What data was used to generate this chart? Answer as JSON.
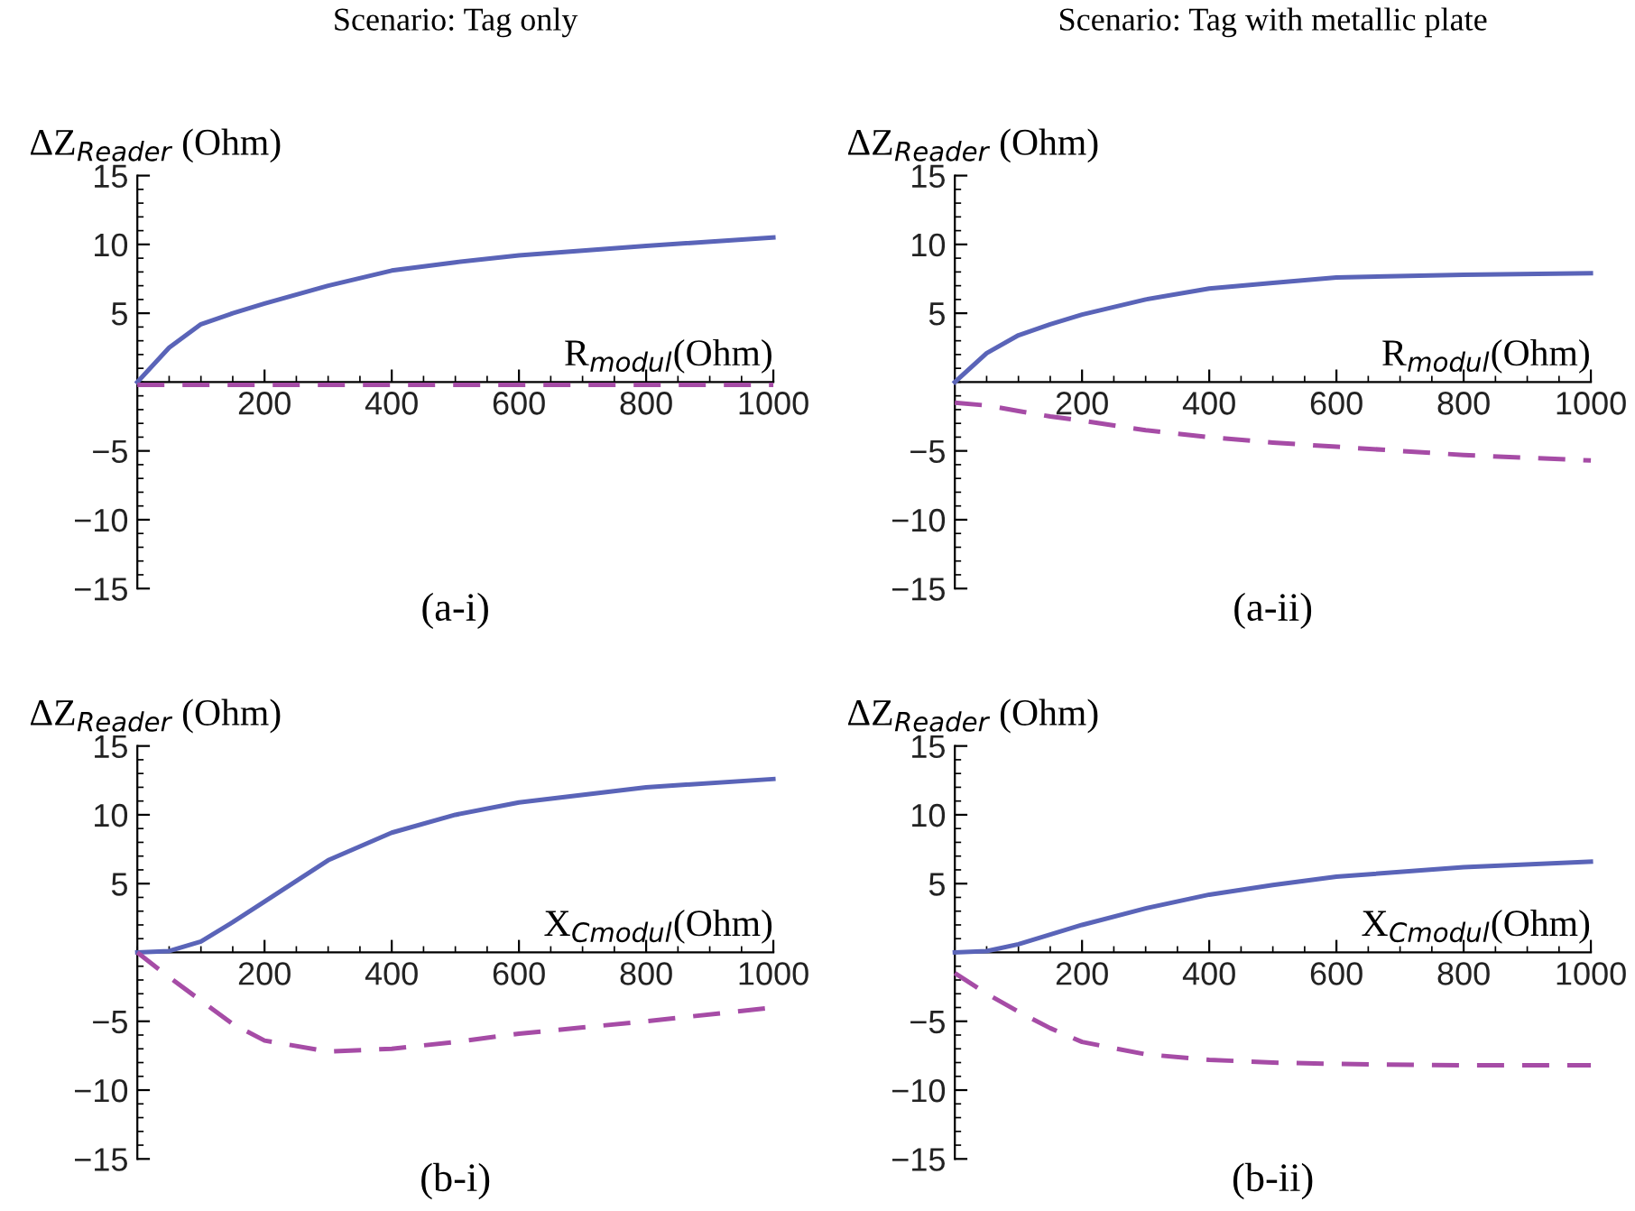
{
  "chart_data": [
    {
      "type": "line",
      "title": "Scenario: Tag only",
      "ylabel": "ΔZ$_{Reader}$ (Ohm)",
      "xlabel": "R$_{modul}$(Ohm)",
      "annotations": [
        "(a-i)"
      ],
      "x": [
        0,
        50,
        100,
        150,
        200,
        300,
        400,
        500,
        600,
        800,
        1000
      ],
      "series": [
        {
          "color": "#5a64b8",
          "line_style": "solid",
          "values": [
            0,
            2.5,
            4.2,
            5.0,
            5.7,
            7.0,
            8.1,
            8.7,
            9.2,
            9.9,
            10.5
          ]
        },
        {
          "color": "#a64ca6",
          "line_style": "dashed",
          "values": [
            -0.2,
            -0.2,
            -0.2,
            -0.2,
            -0.2,
            -0.2,
            -0.2,
            -0.2,
            -0.2,
            -0.2,
            -0.2
          ]
        }
      ],
      "xlim": [
        0,
        1000
      ],
      "ylim": [
        -15,
        15
      ],
      "xticks": [
        200,
        400,
        600,
        800,
        1000
      ],
      "yticks": [
        -15,
        -10,
        -5,
        5,
        10,
        15
      ]
    },
    {
      "type": "line",
      "title": "Scenario: Tag with metallic plate",
      "ylabel": "ΔZ$_{Reader}$ (Ohm)",
      "xlabel": "R$_{modul}$(Ohm)",
      "annotations": [
        "(a-ii)"
      ],
      "x": [
        0,
        50,
        100,
        150,
        200,
        300,
        400,
        500,
        600,
        800,
        1000
      ],
      "series": [
        {
          "color": "#5a64b8",
          "line_style": "solid",
          "values": [
            0,
            2.1,
            3.4,
            4.2,
            4.9,
            6.0,
            6.8,
            7.2,
            7.6,
            7.8,
            7.9
          ]
        },
        {
          "color": "#a64ca6",
          "line_style": "dashed",
          "values": [
            -1.5,
            -1.7,
            -2.1,
            -2.5,
            -2.8,
            -3.5,
            -4.0,
            -4.4,
            -4.7,
            -5.3,
            -5.7
          ]
        }
      ],
      "xlim": [
        0,
        1000
      ],
      "ylim": [
        -15,
        15
      ],
      "xticks": [
        200,
        400,
        600,
        800,
        1000
      ],
      "yticks": [
        -15,
        -10,
        -5,
        5,
        10,
        15
      ]
    },
    {
      "type": "line",
      "ylabel": "ΔZ$_{Reader}$ (Ohm)",
      "xlabel": "X$_{Cmodul}$(Ohm)",
      "annotations": [
        "(b-i)"
      ],
      "x": [
        0,
        50,
        100,
        150,
        200,
        300,
        400,
        500,
        600,
        800,
        1000
      ],
      "series": [
        {
          "color": "#5a64b8",
          "line_style": "solid",
          "values": [
            0,
            0.1,
            0.8,
            2.2,
            3.7,
            6.7,
            8.7,
            10.0,
            10.9,
            12.0,
            12.6
          ]
        },
        {
          "color": "#a64ca6",
          "line_style": "dashed",
          "values": [
            0,
            -1.8,
            -3.5,
            -5.2,
            -6.4,
            -7.2,
            -7.0,
            -6.5,
            -5.9,
            -5.0,
            -4.0
          ]
        }
      ],
      "xlim": [
        0,
        1000
      ],
      "ylim": [
        -15,
        15
      ],
      "xticks": [
        200,
        400,
        600,
        800,
        1000
      ],
      "yticks": [
        -15,
        -10,
        -5,
        5,
        10,
        15
      ]
    },
    {
      "type": "line",
      "ylabel": "ΔZ$_{Reader}$ (Ohm)",
      "xlabel": "X$_{Cmodul}$(Ohm)",
      "annotations": [
        "(b-ii)"
      ],
      "x": [
        0,
        50,
        100,
        150,
        200,
        300,
        400,
        500,
        600,
        800,
        1000
      ],
      "series": [
        {
          "color": "#5a64b8",
          "line_style": "solid",
          "values": [
            0,
            0.1,
            0.6,
            1.3,
            2.0,
            3.2,
            4.2,
            4.9,
            5.5,
            6.2,
            6.6
          ]
        },
        {
          "color": "#a64ca6",
          "line_style": "dashed",
          "values": [
            -1.5,
            -3.0,
            -4.3,
            -5.5,
            -6.5,
            -7.4,
            -7.8,
            -8.0,
            -8.1,
            -8.2,
            -8.2
          ]
        }
      ],
      "xlim": [
        0,
        1000
      ],
      "ylim": [
        -15,
        15
      ],
      "xticks": [
        200,
        400,
        600,
        800,
        1000
      ],
      "yticks": [
        -15,
        -10,
        -5,
        5,
        10,
        15
      ]
    }
  ]
}
